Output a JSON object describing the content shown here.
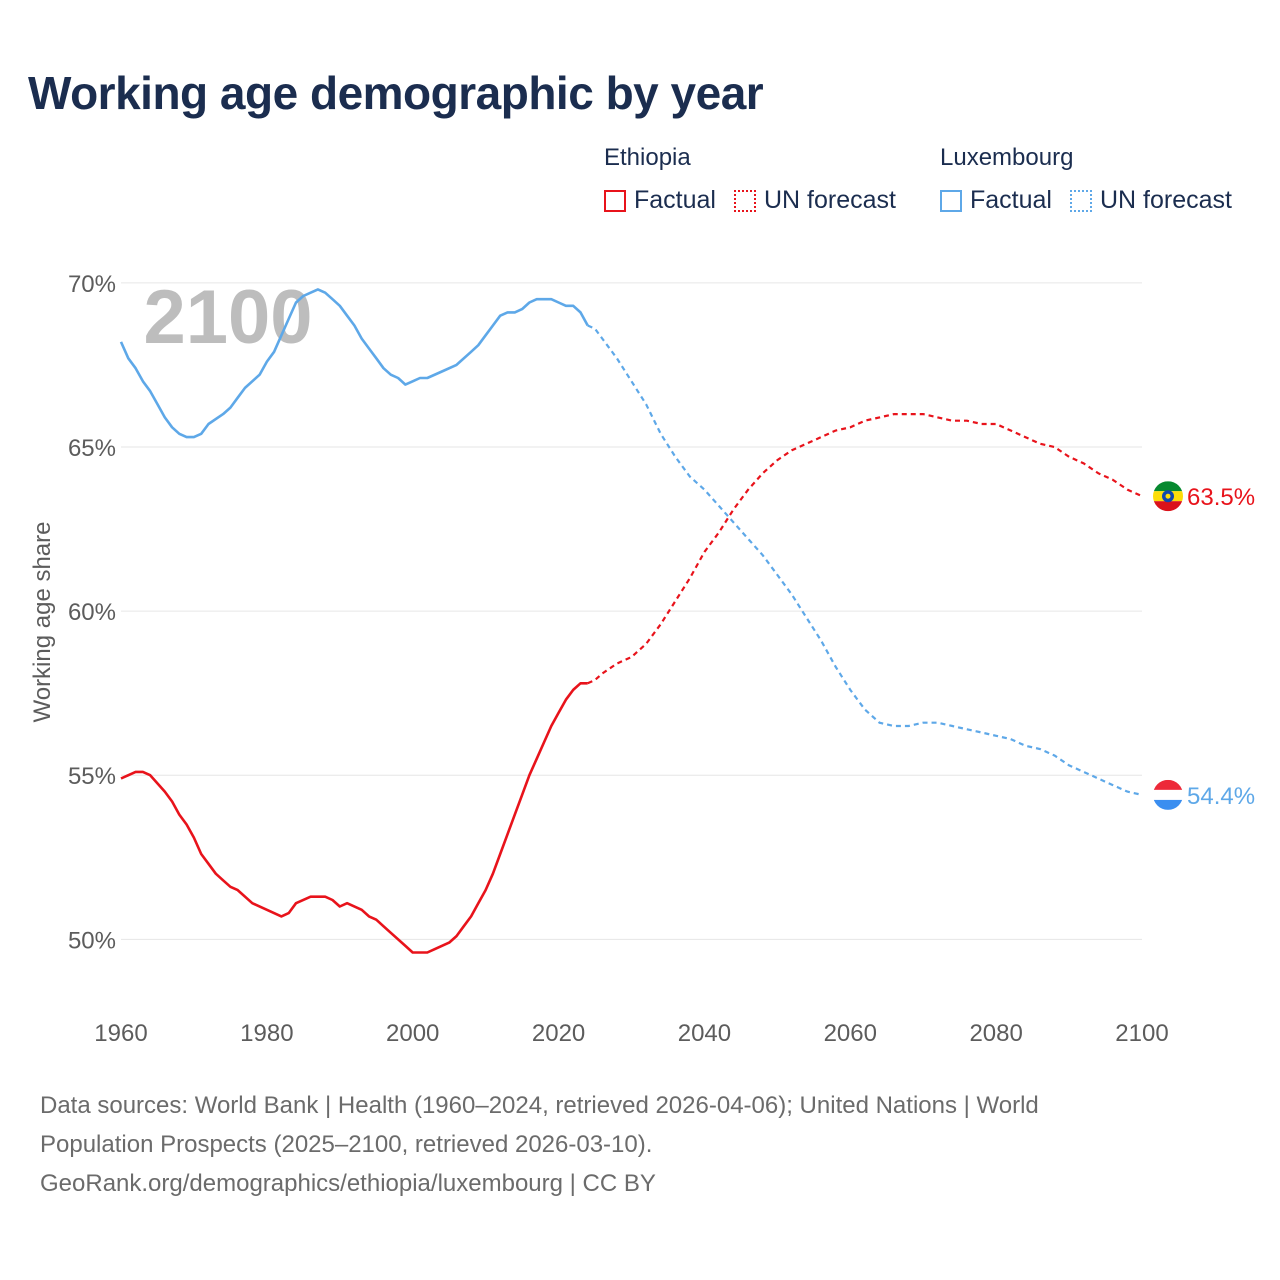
{
  "title": "Working age demographic by year",
  "legend": {
    "ethiopia": {
      "name": "Ethiopia",
      "factual_label": "Factual",
      "forecast_label": "UN forecast",
      "color": "#e8131b"
    },
    "luxembourg": {
      "name": "Luxembourg",
      "factual_label": "Factual",
      "forecast_label": "UN forecast",
      "color": "#5ea8e8"
    }
  },
  "sources": {
    "line1": "Data sources: World Bank | Health (1960–2024, retrieved 2026-04-06); United Nations | World",
    "line2": "Population Prospects (2025–2100, retrieved 2026-03-10).",
    "line3": "GeoRank.org/demographics/ethiopia/luxembourg | CC BY"
  },
  "chart_data": {
    "type": "line",
    "title": "Working age demographic by year",
    "xlabel": "",
    "ylabel": "Working age share",
    "xlim": [
      1960,
      2100
    ],
    "ylim": [
      48,
      71
    ],
    "x_ticks": [
      1960,
      1980,
      2000,
      2020,
      2040,
      2060,
      2080,
      2100
    ],
    "x_tick_labels": [
      "1960",
      "1980",
      "2000",
      "2020",
      "2040",
      "2060",
      "2080",
      "2100"
    ],
    "y_ticks": [
      50,
      55,
      60,
      65,
      70
    ],
    "y_tick_labels": [
      "50%",
      "55%",
      "60%",
      "65%",
      "70%"
    ],
    "grid": true,
    "year_watermark": "2100",
    "factual_end_year": 2024,
    "series": [
      {
        "name": "Ethiopia",
        "color": "#e8131b",
        "end_label": "63.5%",
        "flag_icon": "ethiopia-flag-icon",
        "points": [
          [
            1960,
            54.9
          ],
          [
            1962,
            55.1
          ],
          [
            1963,
            55.1
          ],
          [
            1964,
            55.0
          ],
          [
            1966,
            54.5
          ],
          [
            1967,
            54.2
          ],
          [
            1968,
            53.8
          ],
          [
            1969,
            53.5
          ],
          [
            1970,
            53.1
          ],
          [
            1971,
            52.6
          ],
          [
            1972,
            52.3
          ],
          [
            1973,
            52.0
          ],
          [
            1974,
            51.8
          ],
          [
            1975,
            51.6
          ],
          [
            1976,
            51.5
          ],
          [
            1978,
            51.1
          ],
          [
            1980,
            50.9
          ],
          [
            1982,
            50.7
          ],
          [
            1983,
            50.8
          ],
          [
            1984,
            51.1
          ],
          [
            1986,
            51.3
          ],
          [
            1988,
            51.3
          ],
          [
            1989,
            51.2
          ],
          [
            1990,
            51.0
          ],
          [
            1991,
            51.1
          ],
          [
            1993,
            50.9
          ],
          [
            1994,
            50.7
          ],
          [
            1995,
            50.6
          ],
          [
            1997,
            50.2
          ],
          [
            1999,
            49.8
          ],
          [
            2000,
            49.6
          ],
          [
            2002,
            49.6
          ],
          [
            2003,
            49.7
          ],
          [
            2005,
            49.9
          ],
          [
            2006,
            50.1
          ],
          [
            2007,
            50.4
          ],
          [
            2008,
            50.7
          ],
          [
            2009,
            51.1
          ],
          [
            2010,
            51.5
          ],
          [
            2011,
            52.0
          ],
          [
            2012,
            52.6
          ],
          [
            2013,
            53.2
          ],
          [
            2014,
            53.8
          ],
          [
            2015,
            54.4
          ],
          [
            2016,
            55.0
          ],
          [
            2017,
            55.5
          ],
          [
            2018,
            56.0
          ],
          [
            2019,
            56.5
          ],
          [
            2020,
            56.9
          ],
          [
            2021,
            57.3
          ],
          [
            2022,
            57.6
          ],
          [
            2023,
            57.8
          ],
          [
            2024,
            57.8
          ],
          [
            2025,
            57.9
          ],
          [
            2026,
            58.1
          ],
          [
            2028,
            58.4
          ],
          [
            2030,
            58.6
          ],
          [
            2032,
            59.0
          ],
          [
            2034,
            59.6
          ],
          [
            2036,
            60.3
          ],
          [
            2038,
            61.0
          ],
          [
            2040,
            61.8
          ],
          [
            2042,
            62.4
          ],
          [
            2044,
            63.1
          ],
          [
            2046,
            63.7
          ],
          [
            2048,
            64.2
          ],
          [
            2050,
            64.6
          ],
          [
            2052,
            64.9
          ],
          [
            2054,
            65.1
          ],
          [
            2056,
            65.3
          ],
          [
            2058,
            65.5
          ],
          [
            2060,
            65.6
          ],
          [
            2062,
            65.8
          ],
          [
            2064,
            65.9
          ],
          [
            2066,
            66.0
          ],
          [
            2068,
            66.0
          ],
          [
            2070,
            66.0
          ],
          [
            2072,
            65.9
          ],
          [
            2074,
            65.8
          ],
          [
            2076,
            65.8
          ],
          [
            2078,
            65.7
          ],
          [
            2080,
            65.7
          ],
          [
            2082,
            65.5
          ],
          [
            2084,
            65.3
          ],
          [
            2086,
            65.1
          ],
          [
            2088,
            65.0
          ],
          [
            2090,
            64.7
          ],
          [
            2092,
            64.5
          ],
          [
            2094,
            64.2
          ],
          [
            2096,
            64.0
          ],
          [
            2098,
            63.7
          ],
          [
            2100,
            63.5
          ]
        ]
      },
      {
        "name": "Luxembourg",
        "color": "#5ea8e8",
        "end_label": "54.4%",
        "flag_icon": "luxembourg-flag-icon",
        "points": [
          [
            1960,
            68.2
          ],
          [
            1961,
            67.7
          ],
          [
            1962,
            67.4
          ],
          [
            1963,
            67.0
          ],
          [
            1964,
            66.7
          ],
          [
            1965,
            66.3
          ],
          [
            1966,
            65.9
          ],
          [
            1967,
            65.6
          ],
          [
            1968,
            65.4
          ],
          [
            1969,
            65.3
          ],
          [
            1970,
            65.3
          ],
          [
            1971,
            65.4
          ],
          [
            1972,
            65.7
          ],
          [
            1974,
            66.0
          ],
          [
            1975,
            66.2
          ],
          [
            1976,
            66.5
          ],
          [
            1977,
            66.8
          ],
          [
            1979,
            67.2
          ],
          [
            1980,
            67.6
          ],
          [
            1981,
            67.9
          ],
          [
            1982,
            68.4
          ],
          [
            1983,
            68.9
          ],
          [
            1984,
            69.4
          ],
          [
            1985,
            69.6
          ],
          [
            1986,
            69.7
          ],
          [
            1987,
            69.8
          ],
          [
            1988,
            69.7
          ],
          [
            1989,
            69.5
          ],
          [
            1990,
            69.3
          ],
          [
            1991,
            69.0
          ],
          [
            1992,
            68.7
          ],
          [
            1993,
            68.3
          ],
          [
            1994,
            68.0
          ],
          [
            1995,
            67.7
          ],
          [
            1996,
            67.4
          ],
          [
            1997,
            67.2
          ],
          [
            1998,
            67.1
          ],
          [
            1999,
            66.9
          ],
          [
            2000,
            67.0
          ],
          [
            2001,
            67.1
          ],
          [
            2002,
            67.1
          ],
          [
            2004,
            67.3
          ],
          [
            2006,
            67.5
          ],
          [
            2008,
            67.9
          ],
          [
            2009,
            68.1
          ],
          [
            2010,
            68.4
          ],
          [
            2011,
            68.7
          ],
          [
            2012,
            69.0
          ],
          [
            2013,
            69.1
          ],
          [
            2014,
            69.1
          ],
          [
            2015,
            69.2
          ],
          [
            2016,
            69.4
          ],
          [
            2017,
            69.5
          ],
          [
            2019,
            69.5
          ],
          [
            2020,
            69.4
          ],
          [
            2021,
            69.3
          ],
          [
            2022,
            69.3
          ],
          [
            2023,
            69.1
          ],
          [
            2024,
            68.7
          ],
          [
            2025,
            68.6
          ],
          [
            2026,
            68.3
          ],
          [
            2028,
            67.7
          ],
          [
            2030,
            67.0
          ],
          [
            2032,
            66.3
          ],
          [
            2034,
            65.4
          ],
          [
            2036,
            64.7
          ],
          [
            2038,
            64.1
          ],
          [
            2040,
            63.7
          ],
          [
            2042,
            63.2
          ],
          [
            2044,
            62.7
          ],
          [
            2046,
            62.2
          ],
          [
            2048,
            61.7
          ],
          [
            2050,
            61.1
          ],
          [
            2052,
            60.5
          ],
          [
            2054,
            59.8
          ],
          [
            2056,
            59.1
          ],
          [
            2058,
            58.3
          ],
          [
            2060,
            57.6
          ],
          [
            2062,
            57.0
          ],
          [
            2064,
            56.6
          ],
          [
            2066,
            56.5
          ],
          [
            2068,
            56.5
          ],
          [
            2070,
            56.6
          ],
          [
            2072,
            56.6
          ],
          [
            2074,
            56.5
          ],
          [
            2076,
            56.4
          ],
          [
            2078,
            56.3
          ],
          [
            2080,
            56.2
          ],
          [
            2082,
            56.1
          ],
          [
            2084,
            55.9
          ],
          [
            2086,
            55.8
          ],
          [
            2088,
            55.6
          ],
          [
            2090,
            55.3
          ],
          [
            2092,
            55.1
          ],
          [
            2094,
            54.9
          ],
          [
            2096,
            54.7
          ],
          [
            2098,
            54.5
          ],
          [
            2100,
            54.4
          ]
        ]
      }
    ]
  }
}
